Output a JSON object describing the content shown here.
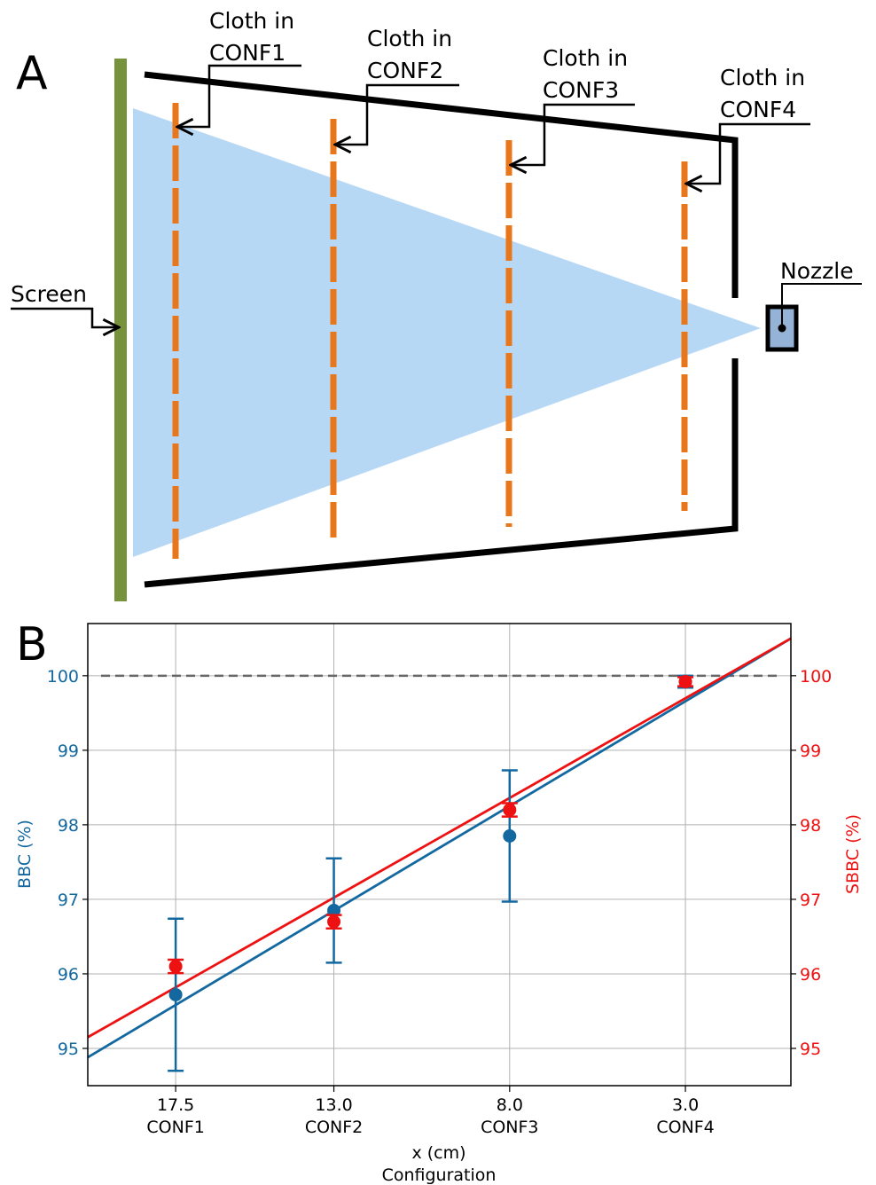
{
  "panel_a": {
    "panel_label": "A",
    "cloth_labels": [
      {
        "line1": "Cloth in",
        "line2": "CONF1"
      },
      {
        "line1": "Cloth in",
        "line2": "CONF2"
      },
      {
        "line1": "Cloth in",
        "line2": "CONF3"
      },
      {
        "line1": "Cloth in",
        "line2": "CONF4"
      }
    ],
    "screen_label": "Screen",
    "nozzle_label": "Nozzle",
    "colors": {
      "screen": "#76923c",
      "spray": "#b7d8f5",
      "cloth": "#e8761a",
      "nozzle": "#95b3d7",
      "frame": "#000000"
    }
  },
  "panel_b": {
    "panel_label": "B"
  },
  "chart_data": {
    "type": "scatter",
    "xlabel": "x (cm)",
    "xlabel2": "Configuration",
    "ylabel_left": "BBC (%)",
    "ylabel_right": "SBBC (%)",
    "categories": [
      "CONF1",
      "CONF2",
      "CONF3",
      "CONF4"
    ],
    "x": [
      17.5,
      13.0,
      8.0,
      3.0
    ],
    "x_tick_labels": [
      "17.5",
      "13.0",
      "8.0",
      "3.0"
    ],
    "y_ticks": [
      95,
      96,
      97,
      98,
      99,
      100
    ],
    "xlim": [
      20.0,
      0.0
    ],
    "ylim_left": [
      94.5,
      100.7
    ],
    "ylim_right": [
      94.5,
      100.7
    ],
    "grid": true,
    "reference_line": {
      "y": 100,
      "style": "dashed",
      "color": "#666666"
    },
    "series": [
      {
        "name": "BBC",
        "axis": "left",
        "color": "#1368a0",
        "values": [
          95.72,
          96.85,
          97.85,
          99.92
        ],
        "error": [
          1.02,
          0.7,
          0.88,
          0.08
        ],
        "fit": {
          "x": [
            20.0,
            0.0
          ],
          "y": [
            94.88,
            100.5
          ]
        }
      },
      {
        "name": "SBBC",
        "axis": "right",
        "color": "#ee1111",
        "values": [
          96.1,
          96.7,
          98.2,
          99.92
        ],
        "error": [
          0.09,
          0.09,
          0.09,
          0.06
        ],
        "fit": {
          "x": [
            20.0,
            0.0
          ],
          "y": [
            95.15,
            100.5
          ]
        }
      }
    ]
  }
}
